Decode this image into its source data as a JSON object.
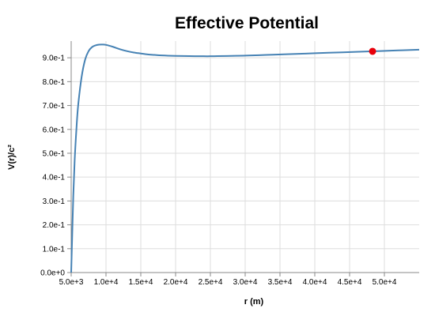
{
  "chart_data": {
    "type": "line",
    "title": "Effective Potential",
    "xlabel": "r (m)",
    "ylabel": "V(r)/c²",
    "xlim": [
      5000,
      55000
    ],
    "ylim": [
      0,
      0.97
    ],
    "x_ticks": [
      5000,
      10000,
      15000,
      20000,
      25000,
      30000,
      35000,
      40000,
      45000,
      50000
    ],
    "x_tick_labels": [
      "5.0e+3",
      "1.0e+4",
      "1.5e+4",
      "2.0e+4",
      "2.5e+4",
      "3.0e+4",
      "3.5e+4",
      "4.0e+4",
      "4.5e+4",
      "5.0e+4"
    ],
    "y_ticks": [
      0,
      0.1,
      0.2,
      0.3,
      0.4,
      0.5,
      0.6,
      0.7,
      0.8,
      0.9
    ],
    "y_tick_labels": [
      "0.0e+0",
      "1.0e-1",
      "2.0e-1",
      "3.0e-1",
      "4.0e-1",
      "5.0e-1",
      "6.0e-1",
      "7.0e-1",
      "8.0e-1",
      "9.0e-1"
    ],
    "grid": true,
    "series": [
      {
        "color": "#4682b4",
        "x": [
          5000,
          5150,
          5300,
          5500,
          5750,
          6000,
          6500,
          7000,
          7500,
          8000,
          8500,
          9000,
          9500,
          10000,
          11000,
          12000,
          13000,
          14000,
          15000,
          16000,
          17000,
          18000,
          20000,
          22000,
          24000,
          25000,
          26000,
          28000,
          30000,
          33000,
          36000,
          40000,
          44000,
          48000,
          52000,
          55000
        ],
        "y": [
          0.0,
          0.16,
          0.32,
          0.47,
          0.6,
          0.7,
          0.82,
          0.892,
          0.928,
          0.945,
          0.952,
          0.955,
          0.9555,
          0.954,
          0.946,
          0.936,
          0.928,
          0.922,
          0.918,
          0.914,
          0.912,
          0.91,
          0.908,
          0.907,
          0.9065,
          0.9065,
          0.907,
          0.908,
          0.909,
          0.912,
          0.915,
          0.919,
          0.923,
          0.927,
          0.931,
          0.934
        ]
      }
    ],
    "marker": {
      "x": 48300,
      "y": 0.927,
      "color": "#e8000b"
    }
  }
}
